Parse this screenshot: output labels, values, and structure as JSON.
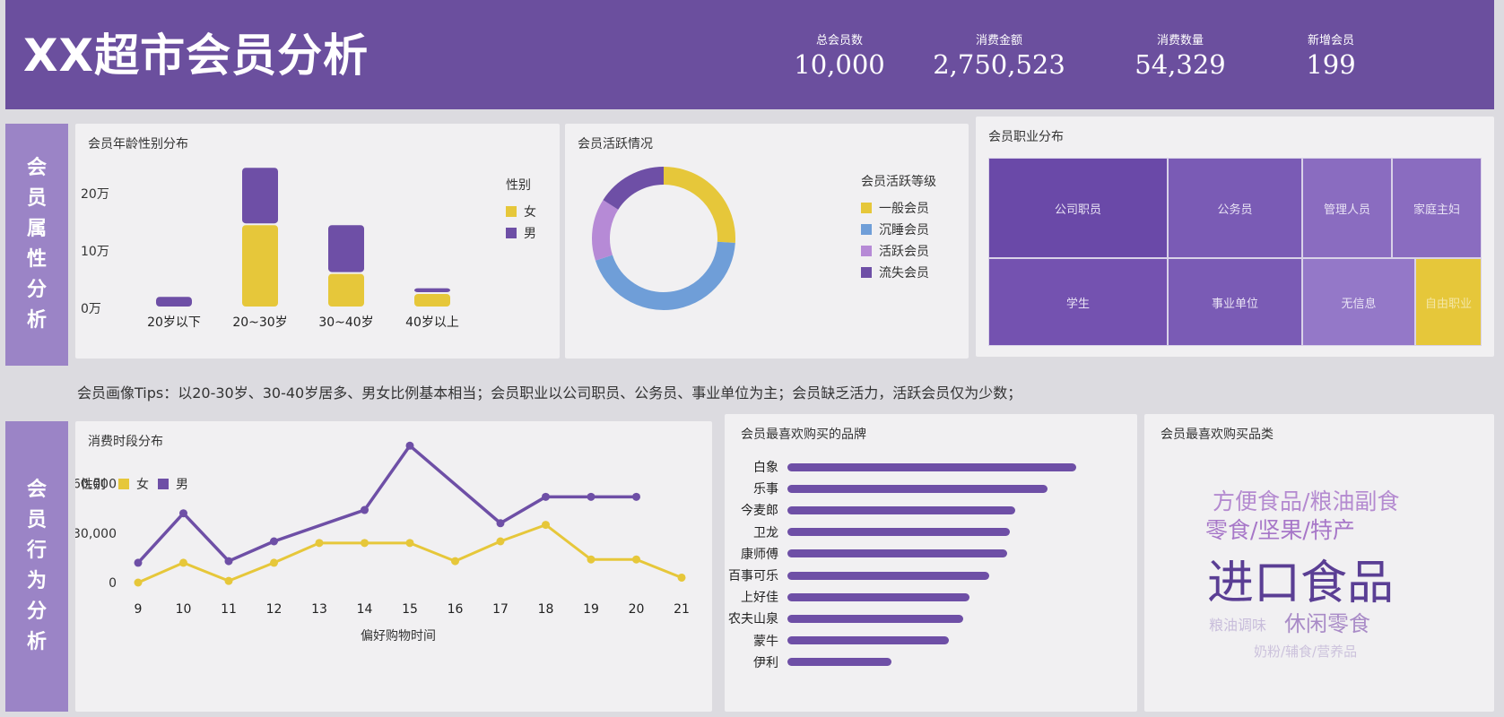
{
  "header": {
    "title": "XX超市会员分析",
    "kpis": [
      {
        "label": "总会员数",
        "value": "10,000"
      },
      {
        "label": "消费金额",
        "value": "2,750,523"
      },
      {
        "label": "消费数量",
        "value": "54,329"
      },
      {
        "label": "新增会员",
        "value": "199"
      }
    ]
  },
  "colors": {
    "accent": "#6b4f9e",
    "female": "#e6c73a",
    "male": "#6e4fa6",
    "dormant": "#6f9ed8",
    "active": "#b68ad6"
  },
  "sections": {
    "attributes_label": [
      "会",
      "员",
      "属",
      "性",
      "分",
      "析"
    ],
    "behavior_label": [
      "会",
      "员",
      "行",
      "为",
      "分",
      "析"
    ]
  },
  "tips": "会员画像Tips：以20-30岁、30-40岁居多、男女比例基本相当；会员职业以公司职员、公务员、事业单位为主；会员缺乏活力，活跃会员仅为少数；",
  "panels": {
    "age_title": "会员年龄性别分布",
    "activity_title": "会员活跃情况",
    "occupation_title": "会员职业分布",
    "time_title": "消费时段分布",
    "brand_title": "会员最喜欢购买的品牌",
    "category_title": "会员最喜欢购买品类"
  },
  "chart_data": [
    {
      "type": "bar",
      "title": "会员年龄性别分布",
      "stacked": true,
      "categories": [
        "20岁以下",
        "20~30岁",
        "30~40岁",
        "40岁以上"
      ],
      "yticks": [
        {
          "v": 0,
          "label": "0万"
        },
        {
          "v": 10,
          "label": "10万"
        },
        {
          "v": 20,
          "label": "20万"
        }
      ],
      "ylim": [
        0,
        25
      ],
      "legend_title": "性别",
      "series": [
        {
          "name": "女",
          "values": [
            0,
            14.5,
            6,
            2.5
          ]
        },
        {
          "name": "男",
          "values": [
            2,
            10,
            8.5,
            1
          ]
        }
      ]
    },
    {
      "type": "pie",
      "title": "会员活跃情况",
      "donut": true,
      "legend_title": "会员活跃等级",
      "labels": [
        "一般会员",
        "沉睡会员",
        "活跃会员",
        "流失会员"
      ],
      "values": [
        26,
        44,
        14,
        16
      ]
    },
    {
      "type": "heatmap",
      "title": "会员职业分布",
      "labels": [
        "公司职员",
        "公务员",
        "管理人员",
        "家庭主妇",
        "学生",
        "事业单位",
        "无信息",
        "自由职业"
      ],
      "values": [
        20,
        16,
        10,
        10,
        20,
        16,
        10,
        8
      ]
    },
    {
      "type": "line",
      "title": "消费时段分布",
      "xlabel": "偏好购物时间",
      "legend_title": "性别",
      "x": [
        9,
        10,
        11,
        12,
        13,
        14,
        15,
        16,
        17,
        18,
        19,
        20,
        21
      ],
      "yticks": [
        {
          "v": 0,
          "label": "0"
        },
        {
          "v": 30000,
          "label": "30,000"
        },
        {
          "v": 60000,
          "label": "60,000"
        }
      ],
      "ylim": [
        -10000,
        90000
      ],
      "series": [
        {
          "name": "女",
          "values": [
            0,
            12000,
            1000,
            12000,
            24000,
            24000,
            24000,
            13000,
            25000,
            35000,
            14000,
            14000,
            3000
          ]
        },
        {
          "name": "男",
          "values": [
            12000,
            42000,
            13000,
            25000,
            null,
            44000,
            83000,
            null,
            36000,
            52000,
            52000,
            52000,
            null
          ]
        }
      ]
    },
    {
      "type": "bar",
      "orientation": "horizontal",
      "title": "会员最喜欢购买的品牌",
      "categories": [
        "白象",
        "乐事",
        "今麦郎",
        "卫龙",
        "康师傅",
        "百事可乐",
        "上好佳",
        "农夫山泉",
        "蒙牛",
        "伊利"
      ],
      "values": [
        100,
        90,
        79,
        77,
        76,
        70,
        63,
        61,
        56,
        36
      ],
      "xlim": [
        0,
        100
      ]
    }
  ],
  "word_cloud": {
    "words": [
      {
        "text": "方便食品/粮油副食",
        "weight": 3,
        "color": "#b48ad0"
      },
      {
        "text": "零食/坚果/特产",
        "weight": 3,
        "color": "#a777c8"
      },
      {
        "text": "进口食品",
        "weight": 5,
        "color": "#5a3e94"
      },
      {
        "text": "粮油调味",
        "weight": 1,
        "color": "#c8bddb"
      },
      {
        "text": "休闲零食",
        "weight": 2,
        "color": "#a98bc7"
      },
      {
        "text": "奶粉/辅食/营养品",
        "weight": 1,
        "color": "#ccc2dc"
      }
    ]
  }
}
